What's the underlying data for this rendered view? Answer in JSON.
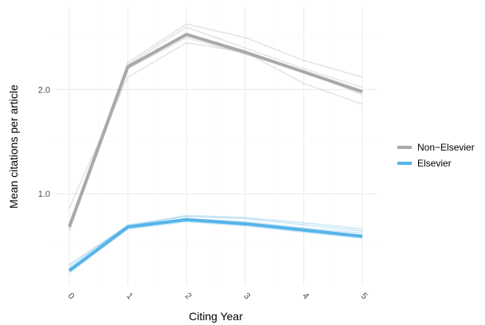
{
  "chart_data": {
    "type": "line",
    "xlabel": "Citing Year",
    "ylabel": "Mean citations per article",
    "x": [
      0,
      1,
      2,
      3,
      4,
      5
    ],
    "x_tick_labels": [
      "0",
      "1",
      "2",
      "3",
      "4",
      "5"
    ],
    "xlim": [
      0,
      5
    ],
    "ylim": [
      0.12,
      2.8
    ],
    "y_ticks": [
      1.0,
      2.0
    ],
    "y_tick_labels": [
      "1.0",
      "2.0"
    ],
    "grid": true,
    "legend_position": "right",
    "series": [
      {
        "name": "Non−Elsevier",
        "color": "#a9a9a9",
        "values": [
          0.68,
          2.22,
          2.53,
          2.36,
          2.17,
          1.98
        ],
        "faint_runs": [
          [
            0.66,
            2.24,
            2.6,
            2.4,
            2.2,
            2.02
          ],
          [
            0.7,
            2.26,
            2.63,
            2.5,
            2.28,
            2.12
          ],
          [
            0.86,
            2.12,
            2.45,
            2.36,
            2.06,
            1.86
          ],
          [
            0.64,
            2.2,
            2.5,
            2.34,
            2.18,
            1.95
          ]
        ]
      },
      {
        "name": "Elsevier",
        "color": "#56b4e9",
        "values": [
          0.26,
          0.68,
          0.75,
          0.71,
          0.65,
          0.59
        ],
        "faint_runs": [
          [
            0.3,
            0.7,
            0.78,
            0.76,
            0.7,
            0.64
          ],
          [
            0.28,
            0.69,
            0.76,
            0.73,
            0.67,
            0.62
          ],
          [
            0.24,
            0.66,
            0.73,
            0.69,
            0.63,
            0.57
          ],
          [
            0.32,
            0.69,
            0.79,
            0.77,
            0.72,
            0.66
          ]
        ]
      }
    ]
  }
}
